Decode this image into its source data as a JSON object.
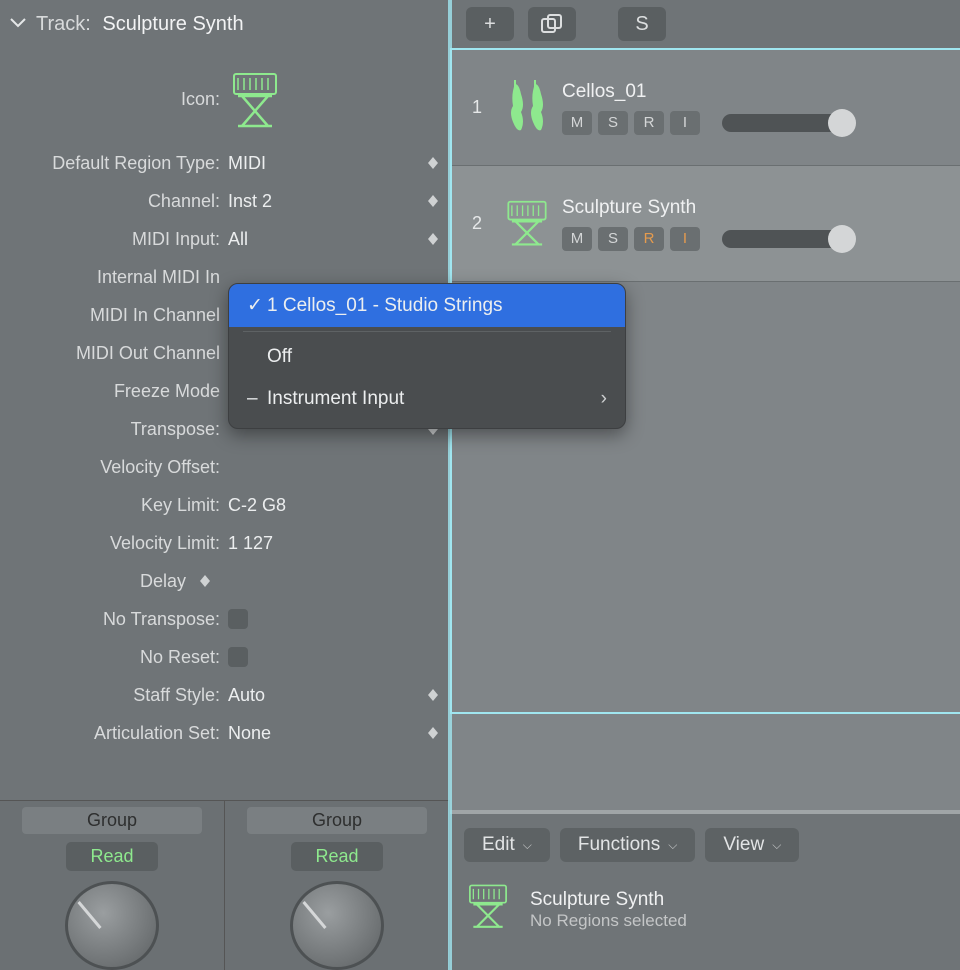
{
  "colors": {
    "panel_bg": "#6f7477",
    "subpanel_bg": "#808588",
    "accent_green": "#8ee98e",
    "accent_blue": "#2f6fe0",
    "selection_border": "#a0e6f0",
    "text_light": "#eceeef",
    "text_dim": "#d8dadb",
    "button_bg": "#5a5f61",
    "orange": "#e59b4e"
  },
  "header": {
    "label": "Track:",
    "value": "Sculpture Synth"
  },
  "inspector": {
    "icon_label": "Icon:",
    "rows": [
      {
        "label": "Default Region Type:",
        "value": "MIDI",
        "stepper": true
      },
      {
        "label": "Channel:",
        "value": "Inst 2",
        "stepper": true
      },
      {
        "label": "MIDI Input:",
        "value": "All",
        "stepper": true
      },
      {
        "label": "Internal MIDI In",
        "value": "",
        "stepper": false
      },
      {
        "label": "MIDI In Channel",
        "value": "",
        "stepper": false
      },
      {
        "label": "MIDI Out Channel",
        "value": "",
        "stepper": false
      },
      {
        "label": "Freeze Mode",
        "value": "",
        "stepper": false
      },
      {
        "label": "Transpose:",
        "value": "",
        "stepper": true
      },
      {
        "label": "Velocity Offset:",
        "value": "",
        "stepper": false
      },
      {
        "label": "Key Limit:",
        "value": "C-2  G8",
        "stepper": false
      },
      {
        "label": "Velocity Limit:",
        "value": "1   127",
        "stepper": false
      }
    ],
    "delay_label": "Delay",
    "no_transpose_label": "No Transpose:",
    "no_reset_label": "No Reset:",
    "staff_style": {
      "label": "Staff Style:",
      "value": "Auto"
    },
    "articulation": {
      "label": "Articulation Set:",
      "value": "None"
    }
  },
  "channel_strips": [
    {
      "group": "Group",
      "read": "Read"
    },
    {
      "group": "Group",
      "read": "Read"
    }
  ],
  "popup": {
    "selected": "1 Cellos_01 - Studio Strings",
    "off": "Off",
    "submenu": "Instrument Input"
  },
  "toolbar": {
    "add": "+",
    "duplicate": "⊞",
    "solo": "S"
  },
  "tracks": [
    {
      "num": "1",
      "name": "Cellos_01",
      "icon": "violin",
      "buttons": [
        "M",
        "S",
        "R",
        "I"
      ],
      "selected": false
    },
    {
      "num": "2",
      "name": "Sculpture Synth",
      "icon": "synth",
      "buttons": [
        "M",
        "S",
        "R",
        "I"
      ],
      "r_orange": true,
      "i_orange": true,
      "selected": true
    }
  ],
  "editor": {
    "buttons": [
      "Edit",
      "Functions",
      "View"
    ],
    "track_name": "Sculpture Synth",
    "track_sub": "No Regions selected"
  }
}
